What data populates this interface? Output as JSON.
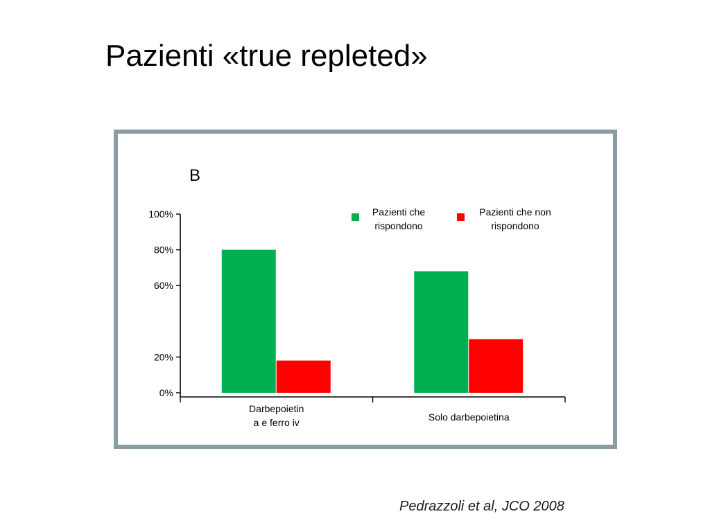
{
  "slide": {
    "title": "Pazienti «true repleted»",
    "citation": "Pedrazzoli et al, JCO 2008"
  },
  "chart_data": {
    "type": "bar",
    "panel_label": "B",
    "categories": [
      [
        "Darbepoietin",
        "a e ferro iv"
      ],
      [
        "Solo darbepoietina"
      ]
    ],
    "series": [
      {
        "name": "Pazienti che rispondono",
        "legend_lines": [
          "Pazienti che",
          "rispondono"
        ],
        "color": "#00b050",
        "values": [
          80,
          68
        ]
      },
      {
        "name": "Pazienti che non rispondono",
        "legend_lines": [
          "Pazienti che non",
          "rispondono"
        ],
        "color": "#ff0000",
        "values": [
          18,
          30
        ]
      }
    ],
    "ylim": [
      0,
      100
    ],
    "y_ticks": [
      {
        "label": "100%",
        "value": 100
      },
      {
        "label": "80%",
        "value": 80
      },
      {
        "label": "60%",
        "value": 60
      },
      {
        "label": "20%",
        "value": 20
      },
      {
        "label": "0%",
        "value": 0
      }
    ],
    "legend_position": "top-right",
    "grid": false
  }
}
